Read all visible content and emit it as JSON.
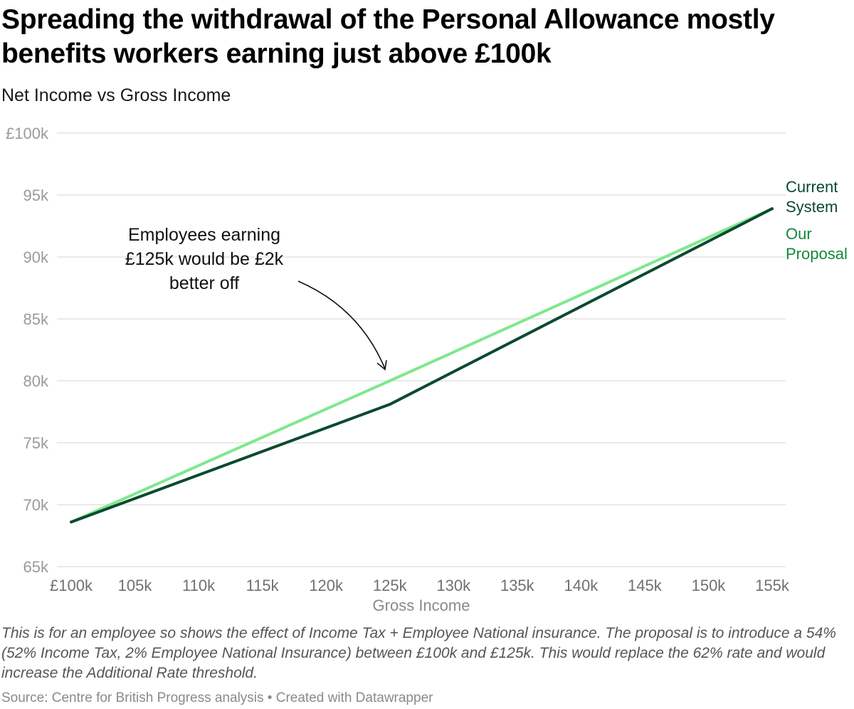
{
  "header": {
    "title": "Spreading the withdrawal of the Personal Allowance mostly benefits workers earning just above £100k",
    "subtitle": "Net Income vs Gross Income"
  },
  "colors": {
    "current_system": "#0b4a2e",
    "our_proposal_line": "#7ee88e",
    "our_proposal_label": "#14873b",
    "grid": "#e3e3e3"
  },
  "chart_data": {
    "type": "line",
    "title": "Spreading the withdrawal of the Personal Allowance mostly benefits workers earning just above £100k",
    "subtitle": "Net Income vs Gross Income",
    "xlabel": "Gross Income",
    "ylabel": "",
    "x": [
      100,
      125,
      155
    ],
    "x_unit": "£k",
    "series": [
      {
        "name": "Current System",
        "values": [
          68.6,
          78.1,
          93.9
        ]
      },
      {
        "name": "Our Proposal",
        "values": [
          68.6,
          80.0,
          93.9
        ]
      }
    ],
    "xlim": [
      100,
      155
    ],
    "ylim": [
      65,
      100
    ],
    "x_ticks": [
      "£100k",
      "105k",
      "110k",
      "115k",
      "120k",
      "125k",
      "130k",
      "135k",
      "140k",
      "145k",
      "150k",
      "155k"
    ],
    "y_ticks": [
      "£100k",
      "95k",
      "90k",
      "85k",
      "80k",
      "75k",
      "70k",
      "65k"
    ],
    "grid": true,
    "legend_position": "right, inline at line ends",
    "annotations": [
      {
        "text": "Employees earning £125k would be £2k better off",
        "lines": [
          "Employees earning",
          "£125k would be £2k",
          "better off"
        ],
        "points_to": {
          "x": 125,
          "y": 80
        }
      }
    ]
  },
  "legend": {
    "current": [
      "Current",
      "System"
    ],
    "proposal": [
      "Our",
      "Proposal"
    ]
  },
  "footer": {
    "notes": "This is for an employee so shows the effect of Income Tax + Employee National insurance. The proposal is to introduce a 54% (52% Income Tax, 2% Employee National Insurance) between £100k and £125k. This would replace the 62% rate and would increase the Additional Rate threshold.",
    "source": "Source: Centre for British Progress analysis • Created with Datawrapper"
  }
}
